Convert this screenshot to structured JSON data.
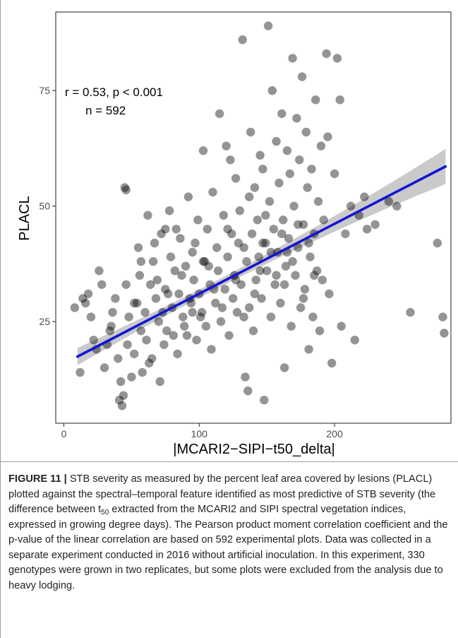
{
  "figure": {
    "label": "FIGURE 11",
    "separator": " | ",
    "caption_part1": "STB severity as measured by the percent leaf area covered by lesions (PLACL) plotted against the spectral–temporal feature identified as most predictive of STB severity (the difference between t",
    "caption_sub": "50",
    "caption_part2": " extracted from the MCARI2 and SIPI spectral vegetation indices, expressed in growing degree days). The Pearson product moment correlation coefficient and the p-value of the linear correlation are based on 592 experimental plots. Data was collected in a separate experiment conducted in 2016 without artificial inoculation. In this experiment, 330 genotypes were grown in two replicates, but some plots were excluded from the analysis due to heavy lodging."
  },
  "colors": {
    "points": "#000000",
    "points_opacity": 0.42,
    "fit_line": "#1414d6",
    "confidence_band": "#b8b8b8",
    "panel_border": "#333333",
    "text": "#231f20"
  },
  "chart_data": {
    "type": "scatter",
    "xlabel": "|MCARI2−SIPI−t50_delta|",
    "ylabel": "PLACL",
    "xlim": [
      -6,
      286
    ],
    "ylim": [
      3,
      92
    ],
    "x_ticks": [
      0,
      100,
      200
    ],
    "y_ticks": [
      25,
      50,
      75
    ],
    "grid": false,
    "annotations": [
      "r = 0.53, p < 0.001",
      "n = 592"
    ],
    "fit": {
      "type": "linear",
      "x_range": [
        10,
        282
      ],
      "intercept": 15.9,
      "slope": 0.1513,
      "ci_halfwidth_min": 0.9,
      "ci_halfwidth_edge": 3.8,
      "ci_center_x": 110
    },
    "points": [
      [
        12,
        14
      ],
      [
        16,
        29
      ],
      [
        18,
        31
      ],
      [
        20,
        26
      ],
      [
        24,
        19
      ],
      [
        26,
        36
      ],
      [
        30,
        15
      ],
      [
        32,
        20
      ],
      [
        34,
        23
      ],
      [
        35,
        24
      ],
      [
        36,
        27
      ],
      [
        38,
        30
      ],
      [
        40,
        17
      ],
      [
        41,
        8
      ],
      [
        42,
        12
      ],
      [
        43,
        6.8
      ],
      [
        44,
        9
      ],
      [
        45,
        54
      ],
      [
        46,
        33
      ],
      [
        47,
        20
      ],
      [
        48,
        26
      ],
      [
        50,
        13
      ],
      [
        52,
        18
      ],
      [
        54,
        29
      ],
      [
        55,
        41
      ],
      [
        56,
        35
      ],
      [
        58,
        14
      ],
      [
        60,
        27
      ],
      [
        61,
        21
      ],
      [
        62,
        48
      ],
      [
        64,
        33
      ],
      [
        65,
        17
      ],
      [
        66,
        38
      ],
      [
        68,
        30
      ],
      [
        70,
        25
      ],
      [
        71,
        12
      ],
      [
        72,
        44
      ],
      [
        74,
        20
      ],
      [
        75,
        32
      ],
      [
        76,
        23
      ],
      [
        78,
        49
      ],
      [
        80,
        28
      ],
      [
        82,
        36
      ],
      [
        84,
        18
      ],
      [
        85,
        31
      ],
      [
        86,
        43
      ],
      [
        88,
        26
      ],
      [
        90,
        37
      ],
      [
        91,
        22
      ],
      [
        92,
        52
      ],
      [
        94,
        29
      ],
      [
        95,
        40
      ],
      [
        96,
        34
      ],
      [
        98,
        21
      ],
      [
        99,
        47
      ],
      [
        100,
        31
      ],
      [
        102,
        27
      ],
      [
        103,
        62
      ],
      [
        104,
        38
      ],
      [
        105,
        24
      ],
      [
        106,
        45
      ],
      [
        108,
        33
      ],
      [
        109,
        19
      ],
      [
        110,
        53
      ],
      [
        112,
        29
      ],
      [
        113,
        41
      ],
      [
        114,
        36
      ],
      [
        115,
        70
      ],
      [
        116,
        25
      ],
      [
        118,
        48
      ],
      [
        119,
        32
      ],
      [
        120,
        63
      ],
      [
        121,
        39
      ],
      [
        122,
        22
      ],
      [
        123,
        60
      ],
      [
        124,
        44
      ],
      [
        125,
        30
      ],
      [
        126,
        35
      ],
      [
        127,
        56
      ],
      [
        128,
        27
      ],
      [
        130,
        49
      ],
      [
        131,
        33
      ],
      [
        132,
        86
      ],
      [
        133,
        41
      ],
      [
        134,
        13
      ],
      [
        135,
        38
      ],
      [
        136,
        10
      ],
      [
        137,
        28
      ],
      [
        138,
        66
      ],
      [
        139,
        44
      ],
      [
        140,
        23
      ],
      [
        141,
        54
      ],
      [
        142,
        34
      ],
      [
        143,
        47
      ],
      [
        144,
        39
      ],
      [
        145,
        61
      ],
      [
        146,
        30
      ],
      [
        147,
        58
      ],
      [
        148,
        8
      ],
      [
        149,
        42
      ],
      [
        150,
        36
      ],
      [
        151,
        89
      ],
      [
        152,
        51
      ],
      [
        153,
        26
      ],
      [
        154,
        75
      ],
      [
        155,
        45
      ],
      [
        156,
        33
      ],
      [
        157,
        64
      ],
      [
        158,
        40
      ],
      [
        159,
        55
      ],
      [
        160,
        29
      ],
      [
        161,
        70
      ],
      [
        162,
        47
      ],
      [
        163,
        15
      ],
      [
        164,
        37
      ],
      [
        165,
        62
      ],
      [
        166,
        43
      ],
      [
        167,
        57
      ],
      [
        168,
        24
      ],
      [
        169,
        82
      ],
      [
        170,
        50
      ],
      [
        171,
        35
      ],
      [
        172,
        69
      ],
      [
        173,
        41
      ],
      [
        174,
        60
      ],
      [
        175,
        28
      ],
      [
        176,
        78
      ],
      [
        177,
        46
      ],
      [
        178,
        32
      ],
      [
        179,
        66
      ],
      [
        180,
        54
      ],
      [
        181,
        19
      ],
      [
        182,
        39
      ],
      [
        183,
        58
      ],
      [
        184,
        26
      ],
      [
        185,
        44
      ],
      [
        186,
        73
      ],
      [
        187,
        36
      ],
      [
        188,
        51
      ],
      [
        189,
        23
      ],
      [
        190,
        63
      ],
      [
        191,
        34
      ],
      [
        192,
        47
      ],
      [
        194,
        83
      ],
      [
        195,
        65
      ],
      [
        196,
        31
      ],
      [
        198,
        16
      ],
      [
        200,
        57
      ],
      [
        202,
        82
      ],
      [
        204,
        73
      ],
      [
        205,
        24
      ],
      [
        208,
        44
      ],
      [
        212,
        50
      ],
      [
        215,
        21
      ],
      [
        218,
        48
      ],
      [
        222,
        52
      ],
      [
        224,
        45
      ],
      [
        230,
        46
      ],
      [
        240,
        51
      ],
      [
        246,
        50
      ],
      [
        256,
        27
      ],
      [
        276,
        42
      ],
      [
        280,
        26
      ],
      [
        281,
        22.5
      ],
      [
        8,
        28
      ],
      [
        14,
        30
      ],
      [
        22,
        21
      ],
      [
        28,
        33
      ],
      [
        46,
        53.5
      ],
      [
        52,
        29
      ],
      [
        57,
        38
      ],
      [
        63,
        16
      ],
      [
        67,
        42
      ],
      [
        69,
        34
      ],
      [
        73,
        27
      ],
      [
        77,
        31
      ],
      [
        79,
        39
      ],
      [
        81,
        22
      ],
      [
        83,
        45
      ],
      [
        87,
        35
      ],
      [
        89,
        24
      ],
      [
        93,
        30
      ],
      [
        97,
        42
      ],
      [
        101,
        26
      ],
      [
        107,
        37
      ],
      [
        111,
        32
      ],
      [
        117,
        28
      ],
      [
        121,
        45
      ],
      [
        129,
        42
      ],
      [
        137,
        52
      ],
      [
        141,
        31
      ],
      [
        145,
        36
      ],
      [
        149,
        48
      ],
      [
        153,
        40
      ],
      [
        157,
        35
      ],
      [
        161,
        44
      ],
      [
        165,
        40
      ],
      [
        169,
        38
      ],
      [
        173,
        46
      ],
      [
        177,
        30
      ],
      [
        181,
        42
      ],
      [
        185,
        35
      ],
      [
        57,
        23
      ],
      [
        75,
        45
      ],
      [
        95,
        27
      ],
      [
        103,
        38
      ],
      [
        127,
        34
      ],
      [
        133,
        26
      ],
      [
        147,
        42
      ],
      [
        163,
        33
      ]
    ]
  }
}
